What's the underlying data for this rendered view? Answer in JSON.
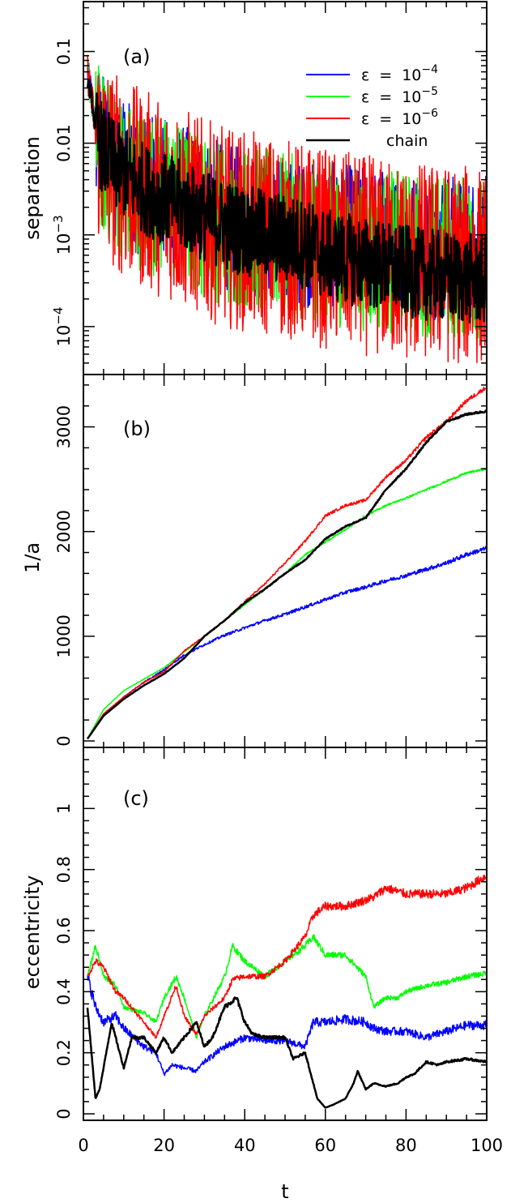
{
  "chart_data": [
    {
      "type": "line",
      "panel_label": "(a)",
      "ylabel": "separation",
      "yscale": "log",
      "xlim": [
        0,
        100
      ],
      "ylim": [
        3e-05,
        0.35
      ],
      "yticks": [
        {
          "value": 0.1,
          "label": "0.1"
        },
        {
          "value": 0.01,
          "label": "0.01"
        },
        {
          "value": 0.001,
          "base": "10",
          "exp": "−3"
        },
        {
          "value": 0.0001,
          "base": "10",
          "exp": "−4"
        }
      ],
      "legend": {
        "position": "top-right",
        "entries": [
          {
            "symbol": "ε",
            "op": "=",
            "base": "10",
            "exp": "−4",
            "color": "#0000ff"
          },
          {
            "symbol": "ε",
            "op": "=",
            "base": "10",
            "exp": "−5",
            "color": "#00ff00"
          },
          {
            "symbol": "ε",
            "op": "=",
            "base": "10",
            "exp": "−6",
            "color": "#ff0000"
          },
          {
            "label": "chain",
            "color": "#000000"
          }
        ]
      },
      "series": [
        {
          "color": "#0000ff",
          "lw": 1.5,
          "noise": 0.8,
          "x": [
            1,
            2,
            3,
            5,
            8,
            12,
            16,
            20,
            25,
            30,
            35,
            40,
            45,
            50,
            55,
            60,
            65,
            70,
            75,
            80,
            85,
            90,
            95,
            100
          ],
          "y": [
            0.06,
            0.035,
            0.015,
            0.009,
            0.006,
            0.004,
            0.0035,
            0.003,
            0.0025,
            0.002,
            0.0016,
            0.0014,
            0.0012,
            0.0011,
            0.001,
            0.001,
            0.00095,
            0.0009,
            0.00085,
            0.0008,
            0.00075,
            0.00075,
            0.0007,
            0.0007
          ]
        },
        {
          "color": "#00ff00",
          "lw": 1.5,
          "noise": 0.9,
          "x": [
            1,
            2,
            3,
            5,
            8,
            12,
            16,
            20,
            25,
            30,
            35,
            40,
            45,
            50,
            55,
            60,
            65,
            70,
            75,
            80,
            85,
            90,
            95,
            100
          ],
          "y": [
            0.06,
            0.03,
            0.012,
            0.007,
            0.005,
            0.0035,
            0.003,
            0.0025,
            0.002,
            0.0016,
            0.0013,
            0.0012,
            0.0011,
            0.001,
            0.0009,
            0.0008,
            0.00075,
            0.0007,
            0.00065,
            0.00062,
            0.0006,
            0.00058,
            0.00056,
            0.00055
          ]
        },
        {
          "color": "#ff0000",
          "lw": 1.5,
          "noise": 1.1,
          "x": [
            1,
            2,
            3,
            5,
            8,
            12,
            16,
            20,
            25,
            30,
            35,
            40,
            45,
            50,
            55,
            60,
            65,
            70,
            75,
            80,
            85,
            90,
            95,
            100
          ],
          "y": [
            0.06,
            0.03,
            0.012,
            0.007,
            0.005,
            0.0035,
            0.003,
            0.0025,
            0.002,
            0.0015,
            0.0012,
            0.0011,
            0.001,
            0.0009,
            0.0008,
            0.0007,
            0.00065,
            0.0006,
            0.00055,
            0.0005,
            0.0005,
            0.00048,
            0.00046,
            0.00045
          ]
        },
        {
          "color": "#000000",
          "lw": 2.5,
          "noise": 0.5,
          "x": [
            1,
            2,
            3,
            5,
            8,
            12,
            16,
            20,
            25,
            30,
            35,
            40,
            45,
            50,
            55,
            60,
            65,
            70,
            75,
            80,
            85,
            90,
            95,
            100
          ],
          "y": [
            0.05,
            0.03,
            0.013,
            0.008,
            0.0055,
            0.004,
            0.003,
            0.0025,
            0.002,
            0.0016,
            0.0013,
            0.0011,
            0.001,
            0.0009,
            0.0008,
            0.0006,
            0.00055,
            0.0005,
            0.00045,
            0.0004,
            0.00037,
            0.00035,
            0.00033,
            0.00032
          ]
        }
      ]
    },
    {
      "type": "line",
      "panel_label": "(b)",
      "ylabel": "1/a",
      "yscale": "linear",
      "xlim": [
        0,
        100
      ],
      "ylim": [
        0,
        3500
      ],
      "yticks": [
        {
          "value": 0,
          "label": "0"
        },
        {
          "value": 1000,
          "label": "1000"
        },
        {
          "value": 2000,
          "label": "2000"
        },
        {
          "value": 3000,
          "label": "3000"
        }
      ],
      "series": [
        {
          "color": "#0000ff",
          "lw": 1.5,
          "noise": 0.012,
          "x": [
            1,
            5,
            10,
            15,
            20,
            25,
            30,
            35,
            40,
            45,
            50,
            55,
            60,
            65,
            70,
            75,
            80,
            85,
            90,
            95,
            100
          ],
          "y": [
            20,
            250,
            420,
            560,
            680,
            820,
            920,
            1010,
            1080,
            1150,
            1210,
            1280,
            1350,
            1420,
            1470,
            1530,
            1580,
            1640,
            1700,
            1780,
            1840
          ]
        },
        {
          "color": "#00ff00",
          "lw": 1.5,
          "noise": 0.004,
          "x": [
            1,
            5,
            10,
            15,
            20,
            25,
            30,
            35,
            40,
            45,
            50,
            55,
            60,
            65,
            70,
            75,
            80,
            85,
            90,
            95,
            100
          ],
          "y": [
            20,
            300,
            480,
            590,
            700,
            850,
            1000,
            1150,
            1300,
            1450,
            1600,
            1780,
            1900,
            2020,
            2150,
            2250,
            2320,
            2400,
            2480,
            2560,
            2600
          ]
        },
        {
          "color": "#ff0000",
          "lw": 1.5,
          "noise": 0.006,
          "x": [
            1,
            5,
            10,
            15,
            20,
            25,
            30,
            35,
            40,
            45,
            50,
            55,
            60,
            65,
            70,
            75,
            80,
            85,
            90,
            95,
            100
          ],
          "y": [
            20,
            260,
            420,
            560,
            660,
            860,
            1000,
            1150,
            1330,
            1500,
            1700,
            1910,
            2150,
            2250,
            2300,
            2520,
            2680,
            2900,
            3050,
            3250,
            3380
          ]
        },
        {
          "color": "#000000",
          "lw": 2.5,
          "noise": 0.003,
          "x": [
            1,
            5,
            10,
            15,
            20,
            25,
            30,
            35,
            40,
            45,
            50,
            55,
            60,
            65,
            70,
            75,
            80,
            85,
            90,
            95,
            100
          ],
          "y": [
            20,
            240,
            400,
            530,
            640,
            790,
            1000,
            1150,
            1320,
            1450,
            1600,
            1730,
            1930,
            2050,
            2130,
            2400,
            2600,
            2850,
            3050,
            3120,
            3150
          ]
        }
      ]
    },
    {
      "type": "line",
      "panel_label": "(c)",
      "ylabel": "eccentricity",
      "xlabel": "t",
      "yscale": "linear",
      "xlim": [
        0,
        100
      ],
      "ylim": [
        0,
        1.2
      ],
      "xticks": [
        {
          "value": 0,
          "label": "0"
        },
        {
          "value": 20,
          "label": "20"
        },
        {
          "value": 40,
          "label": "40"
        },
        {
          "value": 60,
          "label": "60"
        },
        {
          "value": 80,
          "label": "80"
        },
        {
          "value": 100,
          "label": "100"
        }
      ],
      "yticks": [
        {
          "value": 0,
          "label": "0"
        },
        {
          "value": 0.2,
          "label": "0.2"
        },
        {
          "value": 0.4,
          "label": "0.4"
        },
        {
          "value": 0.6,
          "label": "0.6"
        },
        {
          "value": 0.8,
          "label": "0.8"
        },
        {
          "value": 1,
          "label": "1"
        }
      ],
      "series": [
        {
          "color": "#0000ff",
          "lw": 1.5,
          "noise": 0.05,
          "x": [
            1,
            3,
            5,
            8,
            10,
            15,
            18,
            20,
            22,
            25,
            28,
            30,
            35,
            40,
            45,
            50,
            55,
            57,
            60,
            65,
            70,
            72,
            75,
            80,
            85,
            90,
            95,
            100
          ],
          "y": [
            0.45,
            0.35,
            0.3,
            0.32,
            0.28,
            0.22,
            0.2,
            0.13,
            0.16,
            0.15,
            0.14,
            0.17,
            0.22,
            0.25,
            0.24,
            0.24,
            0.22,
            0.3,
            0.3,
            0.31,
            0.3,
            0.28,
            0.27,
            0.27,
            0.25,
            0.27,
            0.29,
            0.29
          ]
        },
        {
          "color": "#00ff00",
          "lw": 1.5,
          "noise": 0.02,
          "x": [
            1,
            3,
            5,
            8,
            10,
            15,
            18,
            20,
            23,
            25,
            28,
            30,
            35,
            37,
            40,
            45,
            50,
            55,
            57,
            60,
            65,
            70,
            72,
            75,
            78,
            80,
            85,
            90,
            95,
            100
          ],
          "y": [
            0.45,
            0.55,
            0.45,
            0.42,
            0.35,
            0.33,
            0.3,
            0.38,
            0.45,
            0.38,
            0.25,
            0.32,
            0.45,
            0.55,
            0.5,
            0.45,
            0.5,
            0.55,
            0.58,
            0.52,
            0.52,
            0.45,
            0.35,
            0.38,
            0.38,
            0.4,
            0.42,
            0.43,
            0.45,
            0.46
          ]
        },
        {
          "color": "#ff0000",
          "lw": 1.5,
          "noise": 0.02,
          "x": [
            1,
            3,
            5,
            8,
            10,
            15,
            18,
            20,
            23,
            25,
            28,
            30,
            35,
            37,
            40,
            45,
            50,
            55,
            57,
            60,
            65,
            70,
            72,
            75,
            80,
            85,
            90,
            95,
            100
          ],
          "y": [
            0.45,
            0.5,
            0.48,
            0.4,
            0.38,
            0.3,
            0.25,
            0.32,
            0.42,
            0.32,
            0.26,
            0.32,
            0.38,
            0.44,
            0.45,
            0.45,
            0.5,
            0.58,
            0.65,
            0.68,
            0.68,
            0.7,
            0.71,
            0.74,
            0.72,
            0.72,
            0.72,
            0.74,
            0.78
          ]
        },
        {
          "color": "#000000",
          "lw": 2.5,
          "noise": 0.02,
          "x": [
            1,
            2,
            3,
            4,
            5,
            7,
            10,
            12,
            15,
            18,
            20,
            22,
            25,
            28,
            30,
            32,
            35,
            38,
            40,
            42,
            45,
            48,
            50,
            52,
            55,
            57,
            58,
            60,
            62,
            65,
            67,
            68,
            70,
            72,
            75,
            78,
            80,
            82,
            85,
            88,
            90,
            95,
            100
          ],
          "y": [
            0.35,
            0.2,
            0.05,
            0.08,
            0.15,
            0.3,
            0.15,
            0.25,
            0.25,
            0.2,
            0.25,
            0.2,
            0.25,
            0.3,
            0.22,
            0.25,
            0.35,
            0.38,
            0.3,
            0.26,
            0.25,
            0.25,
            0.25,
            0.18,
            0.2,
            0.1,
            0.05,
            0.02,
            0.03,
            0.05,
            0.1,
            0.14,
            0.08,
            0.1,
            0.09,
            0.1,
            0.12,
            0.13,
            0.17,
            0.16,
            0.17,
            0.18,
            0.17
          ]
        }
      ]
    }
  ]
}
